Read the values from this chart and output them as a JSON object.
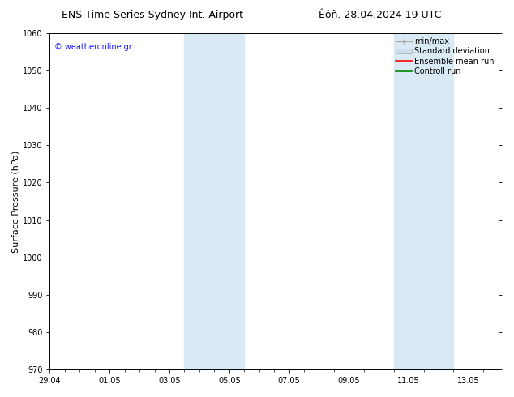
{
  "title_left": "ENS Time Series Sydney Int. Airport",
  "title_right": "Êôñ. 28.04.2024 19 UTC",
  "ylabel": "Surface Pressure (hPa)",
  "ylim": [
    970,
    1060
  ],
  "yticks": [
    970,
    980,
    990,
    1000,
    1010,
    1020,
    1030,
    1040,
    1050,
    1060
  ],
  "xtick_labels": [
    "29.04",
    "01.05",
    "03.05",
    "05.05",
    "07.05",
    "09.05",
    "11.05",
    "13.05"
  ],
  "xtick_positions": [
    0,
    2,
    4,
    6,
    8,
    10,
    12,
    14
  ],
  "xlim": [
    0,
    15
  ],
  "shaded_regions": [
    {
      "x_start": 4.5,
      "x_end": 6.5,
      "color": "#daeaf5"
    },
    {
      "x_start": 11.5,
      "x_end": 13.5,
      "color": "#daeaf5"
    }
  ],
  "watermark_text": "© weatheronline.gr",
  "watermark_color": "#1a1aff",
  "legend_items": [
    {
      "label": "min/max",
      "color": "#aaaaaa",
      "style": "line_caps"
    },
    {
      "label": "Standard deviation",
      "color": "#ccdded",
      "style": "rect"
    },
    {
      "label": "Ensemble mean run",
      "color": "#ff0000",
      "style": "line"
    },
    {
      "label": "Controll run",
      "color": "#008800",
      "style": "line"
    }
  ],
  "bg_color": "#ffffff",
  "plot_bg_color": "#ffffff",
  "spine_color": "#000000",
  "title_fontsize": 9,
  "tick_fontsize": 7,
  "ylabel_fontsize": 8,
  "legend_fontsize": 7,
  "watermark_fontsize": 7
}
